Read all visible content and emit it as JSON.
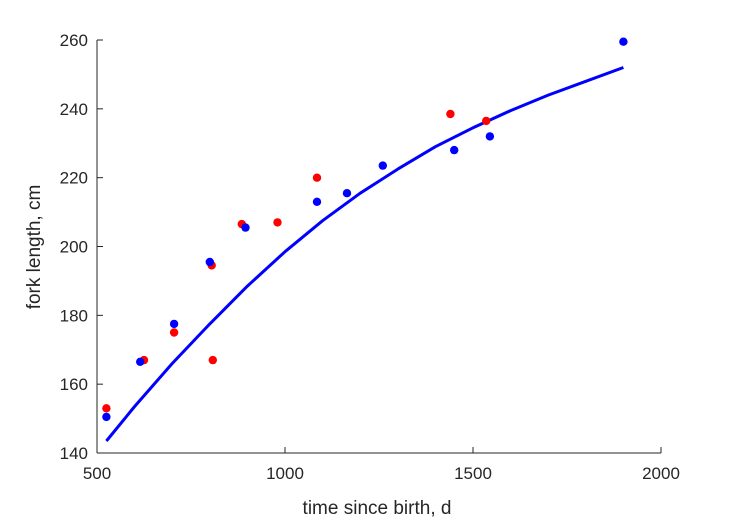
{
  "chart_data": {
    "type": "scatter",
    "title": "",
    "xlabel": "time since birth, d",
    "ylabel": "fork length, cm",
    "xlim": [
      500,
      2000
    ],
    "ylim": [
      140,
      260
    ],
    "xticks": [
      500,
      1000,
      1500,
      2000
    ],
    "yticks": [
      140,
      160,
      180,
      200,
      220,
      240,
      260
    ],
    "grid": false,
    "legend": "none",
    "series": [
      {
        "kind": "scatter",
        "color": "#ff0000",
        "points": [
          [
            525,
            153
          ],
          [
            625,
            167
          ],
          [
            705,
            175
          ],
          [
            805,
            194.5
          ],
          [
            808,
            167
          ],
          [
            885,
            206.5
          ],
          [
            980,
            207
          ],
          [
            1085,
            220
          ],
          [
            1440,
            238.5
          ],
          [
            1535,
            236.5
          ]
        ]
      },
      {
        "kind": "scatter",
        "color": "#0000ff",
        "points": [
          [
            525,
            150.5
          ],
          [
            615,
            166.5
          ],
          [
            705,
            177.5
          ],
          [
            800,
            195.5
          ],
          [
            895,
            205.5
          ],
          [
            1085,
            213
          ],
          [
            1165,
            215.5
          ],
          [
            1260,
            223.5
          ],
          [
            1450,
            228
          ],
          [
            1545,
            232
          ],
          [
            1900,
            259.5
          ]
        ]
      },
      {
        "kind": "line",
        "color": "#0000ff",
        "points": [
          [
            525,
            143.5
          ],
          [
            600,
            153.5
          ],
          [
            700,
            166
          ],
          [
            800,
            177.5
          ],
          [
            900,
            188.5
          ],
          [
            1000,
            198.5
          ],
          [
            1100,
            207.5
          ],
          [
            1200,
            215.5
          ],
          [
            1300,
            222.5
          ],
          [
            1400,
            229
          ],
          [
            1500,
            234.5
          ],
          [
            1600,
            239.5
          ],
          [
            1700,
            244
          ],
          [
            1800,
            248
          ],
          [
            1900,
            252
          ]
        ]
      }
    ]
  }
}
